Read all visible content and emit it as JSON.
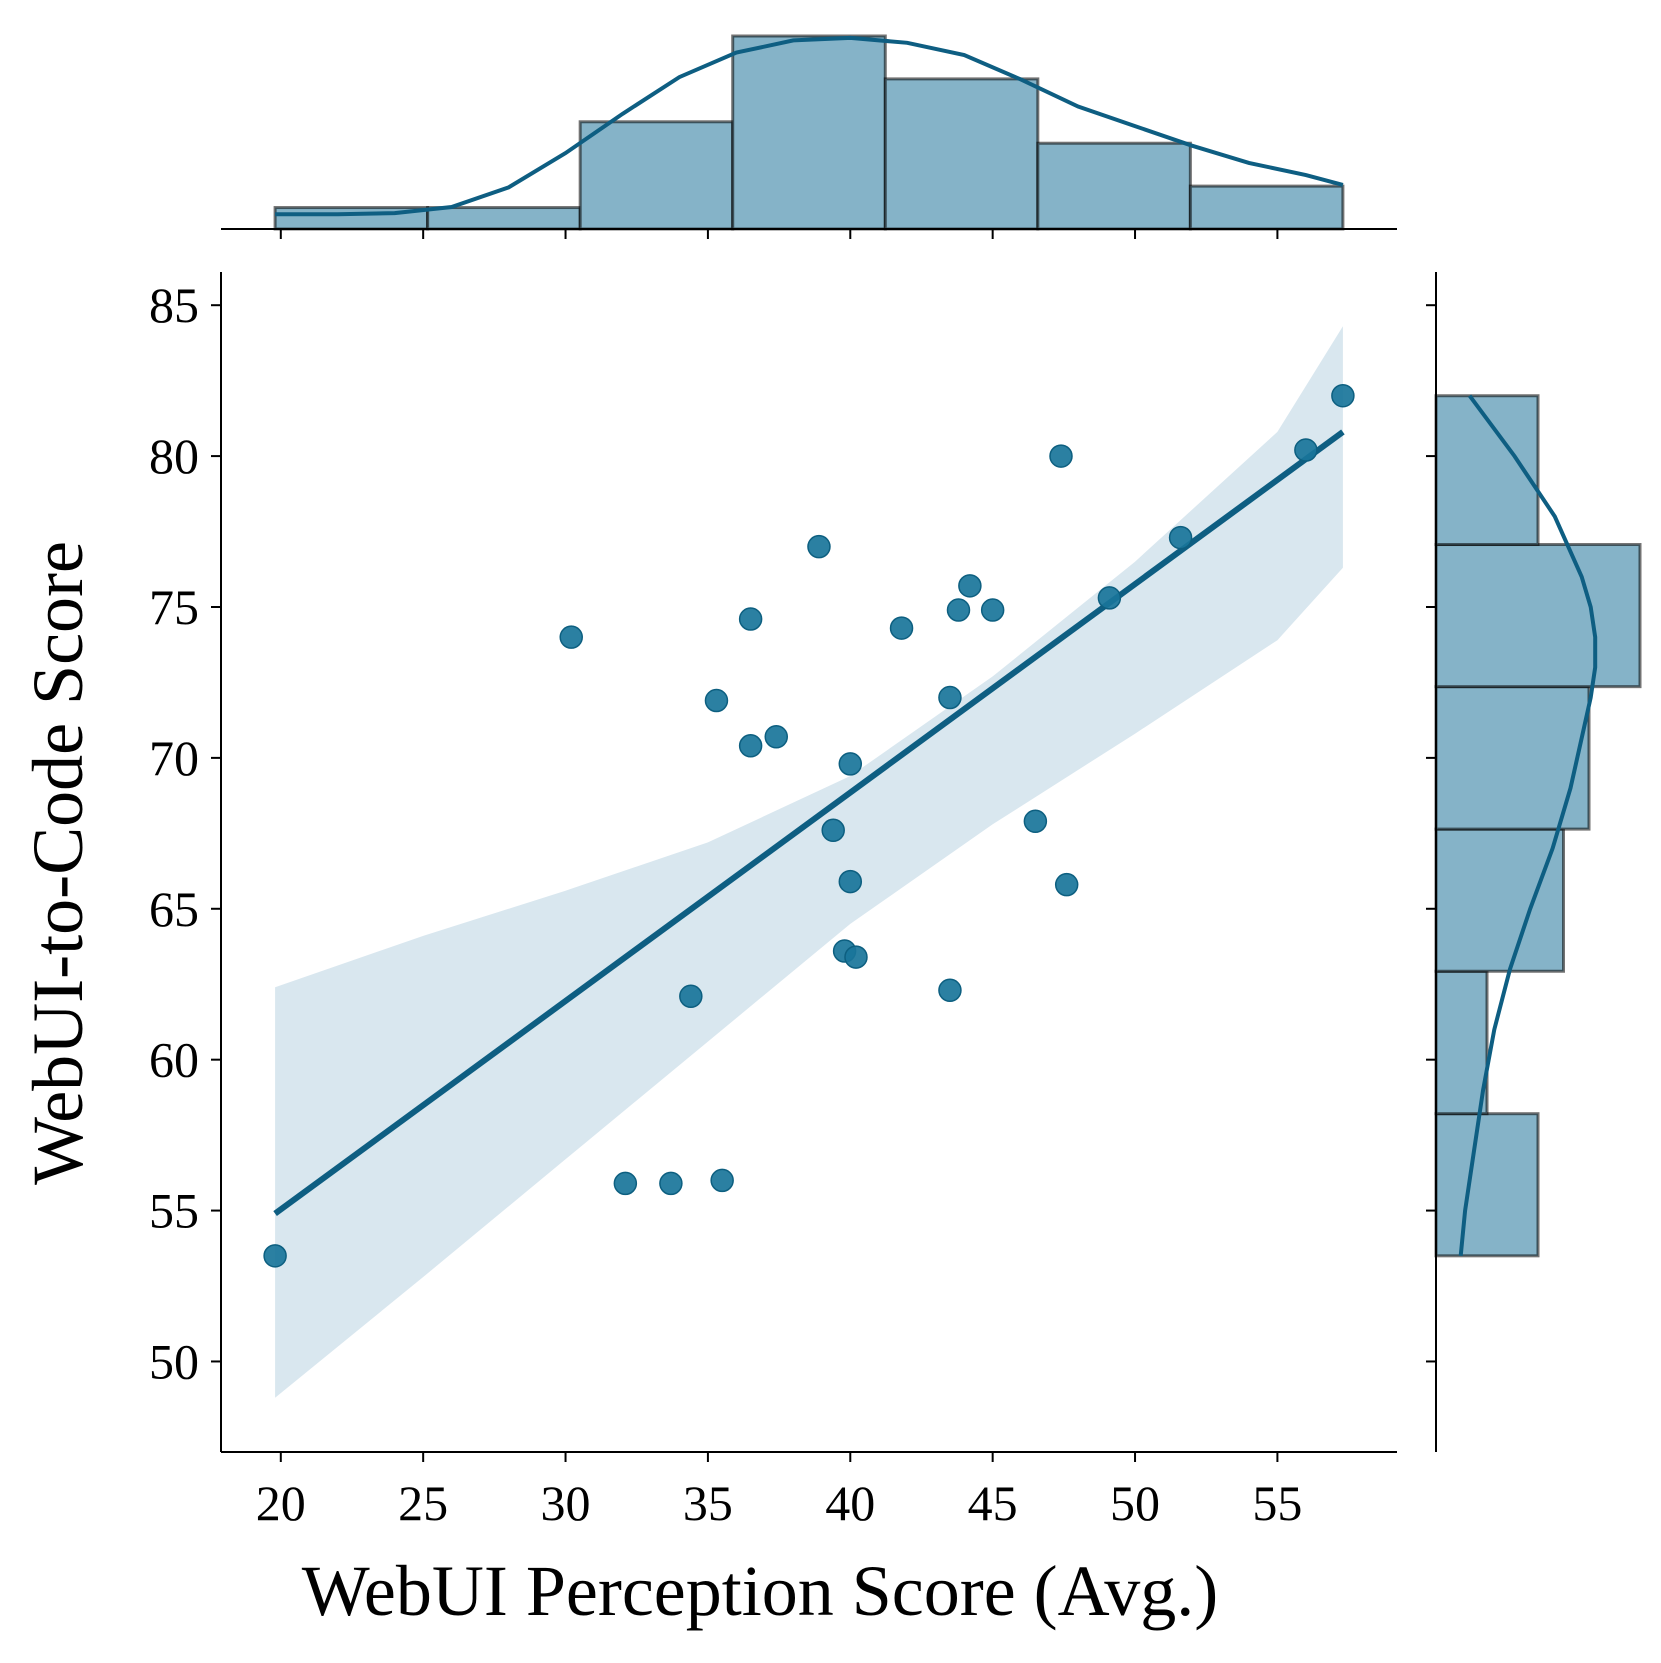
{
  "chart_data": {
    "type": "scatter",
    "title": "",
    "xlabel": "WebUI Perception Score (Avg.)",
    "ylabel": "WebUI-to-Code Score",
    "xlim": [
      17.9,
      59.2
    ],
    "ylim": [
      47.0,
      86.1
    ],
    "x_ticks": [
      20,
      25,
      30,
      35,
      40,
      45,
      50,
      55
    ],
    "y_ticks": [
      50,
      55,
      60,
      65,
      70,
      75,
      80,
      85
    ],
    "grid": false,
    "colors": {
      "points": "#19759A",
      "line": "#0E5E82",
      "band": "#D9E7EF",
      "hist_fill": "#85B3C8",
      "hist_edge": "#000000"
    },
    "points": [
      {
        "x": 19.8,
        "y": 53.5
      },
      {
        "x": 30.2,
        "y": 74.0
      },
      {
        "x": 32.1,
        "y": 55.9
      },
      {
        "x": 33.7,
        "y": 55.9
      },
      {
        "x": 34.4,
        "y": 62.1
      },
      {
        "x": 35.3,
        "y": 71.9
      },
      {
        "x": 35.5,
        "y": 56.0
      },
      {
        "x": 36.5,
        "y": 74.6
      },
      {
        "x": 36.5,
        "y": 70.4
      },
      {
        "x": 37.4,
        "y": 70.7
      },
      {
        "x": 38.9,
        "y": 77.0
      },
      {
        "x": 39.4,
        "y": 67.6
      },
      {
        "x": 39.8,
        "y": 63.6
      },
      {
        "x": 40.0,
        "y": 69.8
      },
      {
        "x": 40.0,
        "y": 65.9
      },
      {
        "x": 40.2,
        "y": 63.4
      },
      {
        "x": 41.8,
        "y": 74.3
      },
      {
        "x": 43.5,
        "y": 72.0
      },
      {
        "x": 43.5,
        "y": 62.3
      },
      {
        "x": 43.8,
        "y": 74.9
      },
      {
        "x": 44.2,
        "y": 75.7
      },
      {
        "x": 45.0,
        "y": 74.9
      },
      {
        "x": 46.5,
        "y": 67.9
      },
      {
        "x": 47.4,
        "y": 80.0
      },
      {
        "x": 47.6,
        "y": 65.8
      },
      {
        "x": 49.1,
        "y": 75.3
      },
      {
        "x": 51.6,
        "y": 77.3
      },
      {
        "x": 56.0,
        "y": 80.2
      },
      {
        "x": 57.3,
        "y": 82.0
      }
    ],
    "regression": {
      "x": [
        19.8,
        57.3
      ],
      "y": [
        54.9,
        80.8
      ],
      "ci_band": [
        {
          "x": 19.8,
          "lo": 48.8,
          "hi": 62.4
        },
        {
          "x": 25.0,
          "lo": 52.8,
          "hi": 64.1
        },
        {
          "x": 30.0,
          "lo": 56.7,
          "hi": 65.6
        },
        {
          "x": 35.0,
          "lo": 60.6,
          "hi": 67.2
        },
        {
          "x": 40.0,
          "lo": 64.5,
          "hi": 69.4
        },
        {
          "x": 45.0,
          "lo": 67.8,
          "hi": 72.7
        },
        {
          "x": 50.0,
          "lo": 70.8,
          "hi": 76.5
        },
        {
          "x": 55.0,
          "lo": 73.9,
          "hi": 80.8
        },
        {
          "x": 57.3,
          "lo": 76.3,
          "hi": 84.3
        }
      ]
    },
    "x_hist": {
      "bin_edges": [
        19.8,
        25.157,
        30.514,
        35.871,
        41.229,
        46.586,
        51.943,
        57.3
      ],
      "counts": [
        1,
        1,
        5,
        9,
        7,
        4,
        2
      ]
    },
    "x_kde": {
      "x": [
        19.8,
        22.0,
        24.0,
        26.0,
        28.0,
        30.0,
        32.0,
        34.0,
        36.0,
        38.0,
        40.0,
        42.0,
        44.0,
        46.0,
        48.0,
        50.0,
        52.0,
        54.0,
        56.0,
        57.3
      ],
      "density": [
        0.06,
        0.06,
        0.065,
        0.09,
        0.17,
        0.31,
        0.47,
        0.62,
        0.72,
        0.77,
        0.78,
        0.76,
        0.71,
        0.61,
        0.5,
        0.42,
        0.34,
        0.27,
        0.22,
        0.18
      ]
    },
    "y_hist": {
      "bin_edges": [
        53.5,
        58.21,
        62.93,
        67.64,
        72.36,
        77.07,
        82.0
      ],
      "counts": [
        4,
        2,
        5,
        6,
        8,
        4
      ]
    },
    "y_kde": {
      "y": [
        53.5,
        55.0,
        57.0,
        59.0,
        61.0,
        63.0,
        65.0,
        67.0,
        69.0,
        71.0,
        72.0,
        73.0,
        74.0,
        75.0,
        76.0,
        78.0,
        80.0,
        82.0
      ],
      "density": [
        0.11,
        0.13,
        0.17,
        0.21,
        0.26,
        0.33,
        0.42,
        0.52,
        0.6,
        0.66,
        0.69,
        0.71,
        0.71,
        0.69,
        0.65,
        0.53,
        0.35,
        0.15
      ]
    }
  }
}
